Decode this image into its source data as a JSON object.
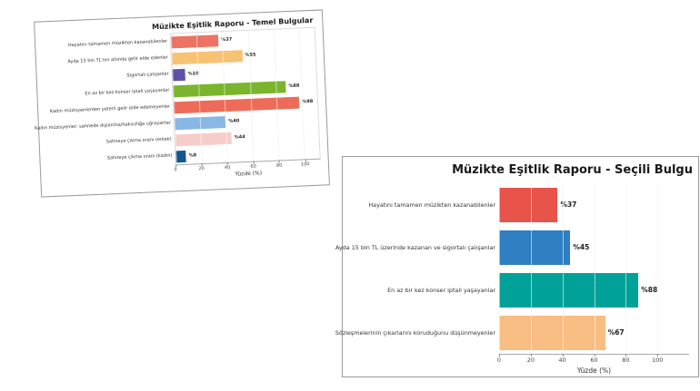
{
  "page": {
    "background": "#ffffff"
  },
  "chart_data": [
    {
      "type": "bar",
      "orientation": "horizontal",
      "title": "Müzikte Eşitlik Raporu - Temel Bulgular",
      "xlabel": "Yüzde (%)",
      "xlim": [
        0,
        112
      ],
      "ticks": [
        0,
        20,
        40,
        60,
        80,
        100
      ],
      "grid": true,
      "legend": "none",
      "categories": [
        "Hayatını tamamen müzikten kazanabilenler",
        "Ayda 15 bin TL'nin altında gelir elde edenler",
        "Sigortalı çalışanlar",
        "En az bir kez konser iptali yaşayanlar",
        "Kadın müzisyenlerden yeterli gelir elde edemeyenler",
        "Kadın müzisyenler: sahnede dışlanma/haksızlığa uğrayanlar",
        "Sahneye çıkma oranı (erkek)",
        "Sahneye çıkma oranı (kadın)"
      ],
      "values": [
        37,
        55,
        10,
        88,
        98,
        40,
        44,
        8
      ],
      "value_labels": [
        "%37",
        "%55",
        "%10",
        "%88",
        "%98",
        "%40",
        "%44",
        "%8"
      ],
      "colors": [
        "#ed7263",
        "#f8c275",
        "#5f51a8",
        "#7ab52d",
        "#ec6c59",
        "#89b7e5",
        "#f7cdc9",
        "#15568d"
      ]
    },
    {
      "type": "bar",
      "orientation": "horizontal",
      "title": "Müzikte Eşitlik Raporu - Seçili Bulgu",
      "xlabel": "Yüzde (%)",
      "xlim": [
        0,
        120
      ],
      "ticks": [
        0,
        20,
        40,
        60,
        80,
        100
      ],
      "grid": true,
      "legend": "none",
      "categories": [
        "Hayatını tamamen müzikten kazanabilenler",
        "Ayda 15 bin TL üzerinde kazanan ve sigortalı çalışanlar",
        "En az bir kez konser iptali yaşayanlar",
        "Sözleşmelerinin çıkarlarını koruduğunu düşünmeyenler"
      ],
      "values": [
        37,
        45,
        88,
        67
      ],
      "value_labels": [
        "%37",
        "%45",
        "%88",
        "%67"
      ],
      "colors": [
        "#e8534a",
        "#2d7fc1",
        "#00a199",
        "#f8bd82"
      ]
    }
  ]
}
